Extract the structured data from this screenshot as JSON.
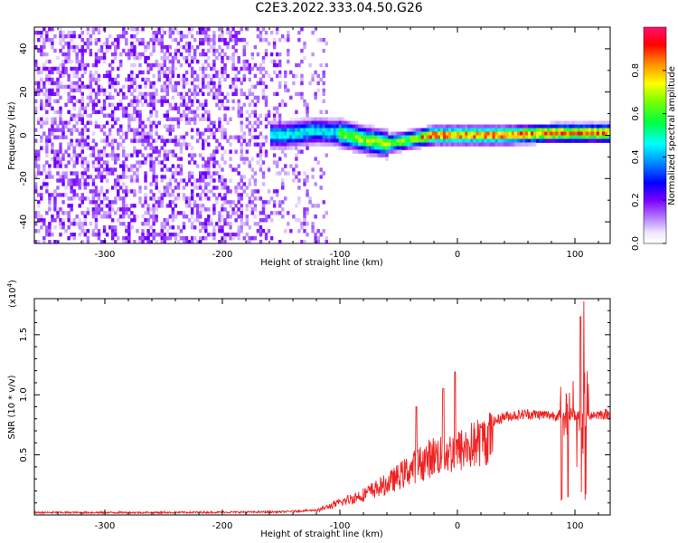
{
  "title": "C2E3.2022.333.04.50.G26",
  "chart_data": [
    {
      "type": "heatmap",
      "xlabel": "Height of straight line (km)",
      "ylabel": "Frequency (Hz)",
      "xlim": [
        -360,
        130
      ],
      "ylim": [
        -50,
        50
      ],
      "xticks": [
        -300,
        -200,
        -100,
        0,
        100
      ],
      "yticks": [
        -40,
        -20,
        0,
        20,
        40
      ],
      "grid": false,
      "colorbar": {
        "label": "Normalized spectral amplitude",
        "range": [
          0.0,
          1.0
        ],
        "ticks": [
          "0.0",
          "0.2",
          "0.4",
          "0.6",
          "0.8"
        ]
      },
      "features": {
        "noise_region_x": [
          -360,
          -110
        ],
        "signal_track_x": [
          -160,
          130
        ],
        "signal_track_freq": [
          [
            -150,
            0
          ],
          [
            -120,
            2
          ],
          [
            -100,
            1
          ],
          [
            -80,
            -2
          ],
          [
            -60,
            -4
          ],
          [
            -40,
            -2
          ],
          [
            -20,
            0
          ],
          [
            0,
            0
          ],
          [
            40,
            0
          ],
          [
            80,
            1
          ],
          [
            100,
            1
          ],
          [
            130,
            1
          ]
        ]
      }
    },
    {
      "type": "line",
      "xlabel": "Height of straight line (km)",
      "ylabel": "SNR (10 * v/v)",
      "yscale_label": "(x10",
      "yscale_exp": "4",
      "xlim": [
        -360,
        130
      ],
      "ylim": [
        0,
        1.8
      ],
      "xticks": [
        -300,
        -200,
        -100,
        0,
        100
      ],
      "yticks": [
        0.5,
        1.0,
        1.5
      ],
      "ytick_labels": [
        "0.5",
        "1.0",
        "1.5"
      ],
      "color": "#ee2222",
      "grid": false,
      "envelope": [
        [
          -360,
          0.02
        ],
        [
          -250,
          0.02
        ],
        [
          -150,
          0.025
        ],
        [
          -120,
          0.04
        ],
        [
          -100,
          0.12
        ],
        [
          -80,
          0.2
        ],
        [
          -60,
          0.3
        ],
        [
          -40,
          0.45
        ],
        [
          -20,
          0.58
        ],
        [
          0,
          0.62
        ],
        [
          20,
          0.72
        ],
        [
          40,
          0.82
        ],
        [
          60,
          0.84
        ],
        [
          80,
          0.83
        ],
        [
          100,
          0.83
        ],
        [
          130,
          0.84
        ]
      ],
      "spikes": [
        [
          -35,
          0.9
        ],
        [
          -12,
          1.05
        ],
        [
          -2,
          1.19
        ],
        [
          88,
          0.95
        ],
        [
          93,
          1.0
        ],
        [
          105,
          1.65
        ],
        [
          108,
          1.78
        ]
      ]
    }
  ]
}
